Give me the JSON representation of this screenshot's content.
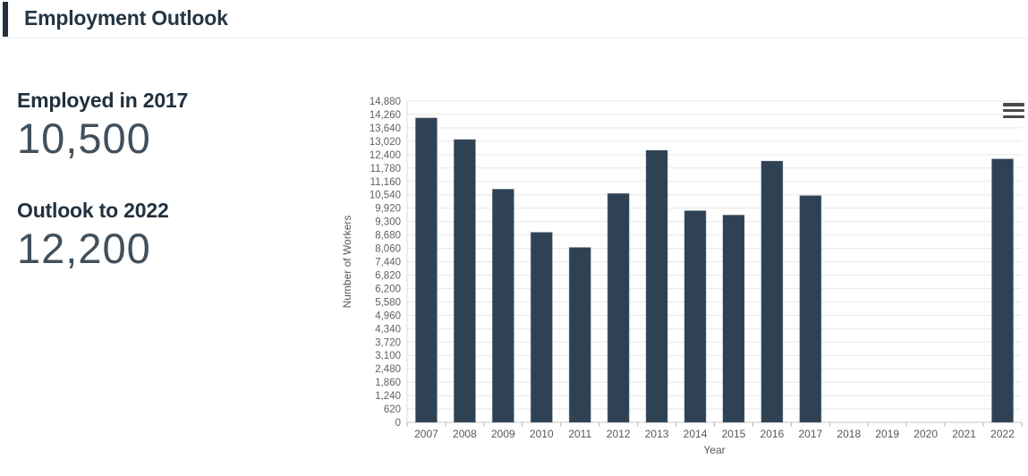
{
  "header": {
    "title": "Employment Outlook"
  },
  "stats": [
    {
      "label": "Employed in 2017",
      "value": "10,500"
    },
    {
      "label": "Outlook to 2022",
      "value": "12,200"
    }
  ],
  "chart": {
    "menu_icon": "hamburger-icon"
  },
  "chart_data": {
    "type": "bar",
    "title": "",
    "xlabel": "Year",
    "ylabel": "Number of Workers",
    "categories": [
      "2007",
      "2008",
      "2009",
      "2010",
      "2011",
      "2012",
      "2013",
      "2014",
      "2015",
      "2016",
      "2017",
      "2018",
      "2019",
      "2020",
      "2021",
      "2022"
    ],
    "values": [
      14100,
      13100,
      10800,
      8800,
      8100,
      10600,
      12600,
      9800,
      9600,
      12100,
      10500,
      null,
      null,
      null,
      null,
      12200
    ],
    "ylim": [
      0,
      14880
    ],
    "ytick_step": 620,
    "grid": "horizontal",
    "legend": "none",
    "bar_color": "#2e4254",
    "gridline_color": "#e7e7e7",
    "axis_line_color": "#c9c9c9",
    "tick_color": "#b5b5b5"
  }
}
